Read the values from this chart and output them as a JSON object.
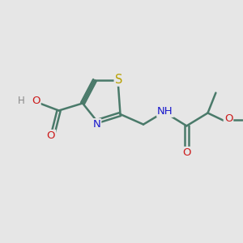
{
  "bg_color": "#e6e6e6",
  "bond_color": "#4a7a6a",
  "bond_lw": 1.8,
  "dbo": 0.07,
  "S_color": "#b8a000",
  "N_color": "#1a1acc",
  "O_color": "#cc1a1a",
  "H_color": "#888888",
  "fs": 9.5,
  "figsize": [
    3.0,
    3.0
  ],
  "dpi": 100,
  "xlim": [
    0,
    10
  ],
  "ylim": [
    0,
    10
  ]
}
